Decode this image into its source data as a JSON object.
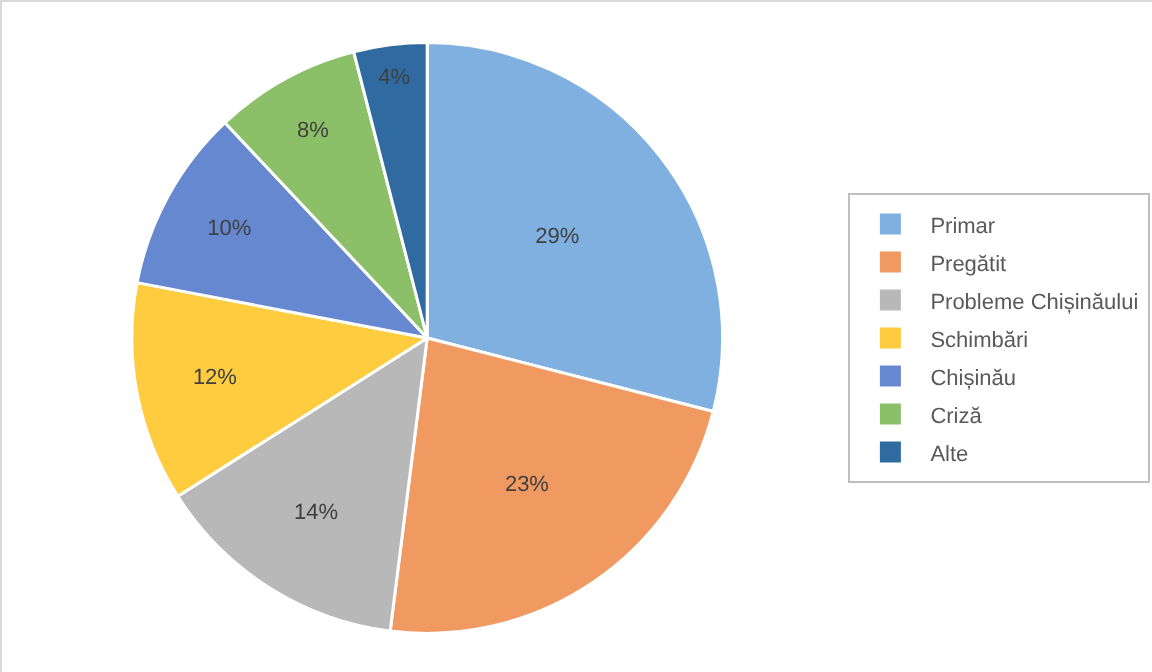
{
  "chart_data": {
    "type": "pie",
    "categories": [
      "Primar",
      "Pregătit",
      "Probleme Chișinăului",
      "Schimbări",
      "Chișinău",
      "Criză",
      "Alte"
    ],
    "values": [
      29,
      23,
      14,
      12,
      10,
      8,
      4
    ],
    "value_labels": [
      "29%",
      "23%",
      "14%",
      "12%",
      "10%",
      "8%",
      "4%"
    ],
    "colors": [
      "#7fb0e0",
      "#f09a62",
      "#b8b8b8",
      "#ffcc40",
      "#6688d0",
      "#8cc068",
      "#2f6aa0"
    ],
    "legend": "right"
  }
}
